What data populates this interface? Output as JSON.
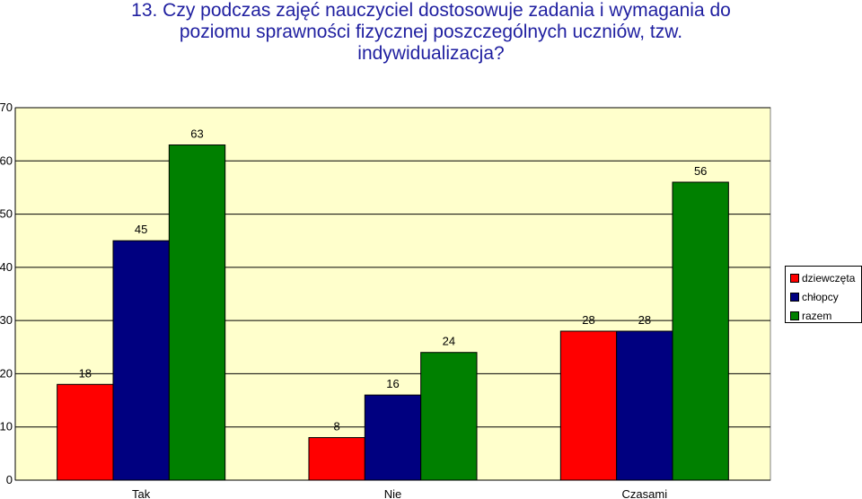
{
  "title_lines": [
    "13. Czy podczas zajęć nauczyciel dostosowuje zadania i wymagania do",
    "poziomu sprawności  fizycznej poszczególnych uczniów, tzw.",
    "indywidualizacja?"
  ],
  "chart_data": {
    "type": "bar",
    "title": "13. Czy podczas zajęć nauczyciel dostosowuje zadania i wymagania do poziomu sprawności  fizycznej poszczególnych uczniów, tzw. indywidualizacja?",
    "categories": [
      "Tak",
      "Nie",
      "Czasami"
    ],
    "series": [
      {
        "name": "dziewczęta",
        "color": "#ff0000",
        "values": [
          18,
          8,
          28
        ]
      },
      {
        "name": "chłopcy",
        "color": "#000080",
        "values": [
          45,
          16,
          28
        ]
      },
      {
        "name": "razem",
        "color": "#008000",
        "values": [
          63,
          24,
          56
        ]
      }
    ],
    "ylim": [
      0,
      70
    ],
    "yticks": [
      0,
      10,
      20,
      30,
      40,
      50,
      60,
      70
    ],
    "plot_background": "#ffffcc",
    "grid": true,
    "legend_position": "right",
    "xlabel": "",
    "ylabel": ""
  }
}
